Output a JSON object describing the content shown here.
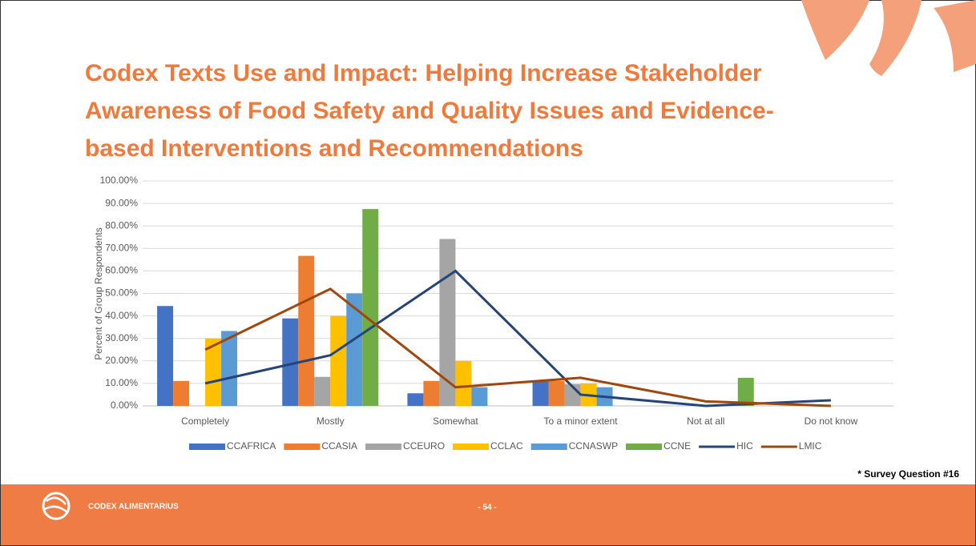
{
  "chart_data": {
    "type": "bar",
    "title": [
      "Codex Texts Use and Impact: Helping Increase Stakeholder",
      "Awareness of Food Safety and Quality Issues and Evidence-",
      "based Interventions and Recommendations"
    ],
    "y_label": "Percent of Group Respondents",
    "categories": [
      "Completely",
      "Mostly",
      "Somewhat",
      "To a minor extent",
      "Not at all",
      "Do not know"
    ],
    "series": [
      {
        "name": "CCAFRICA",
        "type": "bar",
        "color": "#4472c4",
        "values": [
          44.4,
          38.9,
          5.6,
          11.1,
          0,
          0
        ]
      },
      {
        "name": "CCASIA",
        "type": "bar",
        "color": "#ed7d31",
        "values": [
          11.1,
          66.7,
          11.1,
          11.1,
          0,
          0
        ]
      },
      {
        "name": "CCEURO",
        "type": "bar",
        "color": "#a5a5a5",
        "values": [
          0,
          12.9,
          74.2,
          9.7,
          0,
          0
        ]
      },
      {
        "name": "CCLAC",
        "type": "bar",
        "color": "#ffc000",
        "values": [
          30,
          40,
          20,
          10,
          0,
          0
        ]
      },
      {
        "name": "CCNASWP",
        "type": "bar",
        "color": "#5b9bd5",
        "values": [
          33.3,
          50,
          8.3,
          8.3,
          0,
          0
        ]
      },
      {
        "name": "CCNE",
        "type": "bar",
        "color": "#70ad47",
        "values": [
          0,
          87.5,
          0,
          0,
          12.5,
          0
        ]
      },
      {
        "name": "HIC",
        "type": "line",
        "color": "#264478",
        "values": [
          10,
          22.5,
          60,
          5,
          0,
          2.5
        ]
      },
      {
        "name": "LMIC",
        "type": "line",
        "color": "#9e480e",
        "values": [
          25,
          52,
          8.3,
          12.5,
          2,
          0
        ]
      }
    ],
    "ylim": [
      0,
      100
    ],
    "yticks": [
      {
        "value": 0,
        "label": "0.00%"
      },
      {
        "value": 10,
        "label": "10.00%"
      },
      {
        "value": 20,
        "label": "20.00%"
      },
      {
        "value": 30,
        "label": "30.00%"
      },
      {
        "value": 40,
        "label": "40.00%"
      },
      {
        "value": 50,
        "label": "50.00%"
      },
      {
        "value": 60,
        "label": "60.00%"
      },
      {
        "value": 70,
        "label": "70.00%"
      },
      {
        "value": 80,
        "label": "80.00%"
      },
      {
        "value": 90,
        "label": "90.00%"
      },
      {
        "value": 100,
        "label": "100.00%"
      }
    ],
    "grid": true,
    "legend": "bottom"
  },
  "footer": {
    "note": "* Survey Question #16",
    "brand": "CODEX ALIMENTARIUS",
    "page": "- 54 -"
  }
}
